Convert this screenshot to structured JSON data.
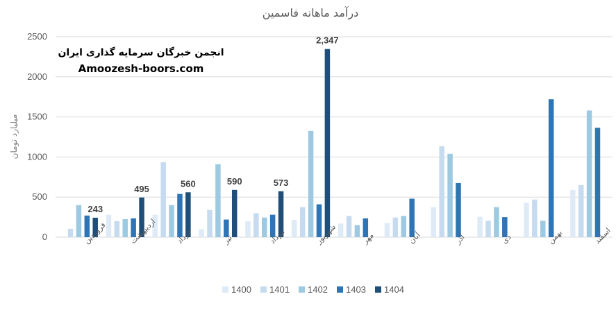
{
  "watermark": {
    "line1": "انجمن خبرگان سرمایه گذاری ایران",
    "line2": "Amoozesh-boors.com"
  },
  "chart_data": {
    "type": "bar",
    "title": "درآمد ماهانه فاسمین",
    "xlabel": "",
    "ylabel": "میلیارد تومان",
    "ylim": [
      0,
      2500
    ],
    "yticks": [
      "0",
      "500",
      "1000",
      "1500",
      "2000",
      "2500"
    ],
    "ytick_values": [
      0,
      500,
      1000,
      1500,
      2000,
      2500
    ],
    "grid": true,
    "legend_position": "bottom",
    "categories": [
      "فروردین",
      "اردیبهشت",
      "خرداد",
      "تیر",
      "مرداد",
      "شهریور",
      "مهر",
      "آبان",
      "آذر",
      "دی",
      "بهمن",
      "اسفند"
    ],
    "series": [
      {
        "name": "1400",
        "color": "#deebf7",
        "values": [
          0,
          280,
          280,
          100,
          200,
          215,
          170,
          175,
          375,
          255,
          430,
          590
        ]
      },
      {
        "name": "1401",
        "color": "#c6dbef",
        "values": [
          105,
          200,
          935,
          340,
          300,
          375,
          265,
          245,
          1135,
          205,
          470,
          650
        ]
      },
      {
        "name": "1402",
        "color": "#9ecae1",
        "values": [
          400,
          225,
          400,
          910,
          245,
          1325,
          150,
          265,
          1040,
          375,
          205,
          1580
        ]
      },
      {
        "name": "1403",
        "color": "#2f75b5",
        "values": [
          270,
          235,
          540,
          220,
          280,
          410,
          235,
          480,
          675,
          250,
          1720,
          1365
        ]
      },
      {
        "name": "1404",
        "color": "#1f4e79",
        "values": [
          243,
          495,
          560,
          590,
          573,
          2347,
          null,
          null,
          null,
          null,
          null,
          null
        ]
      }
    ],
    "data_labels": [
      {
        "series": "1404",
        "category": "فروردین",
        "text": "243"
      },
      {
        "series": "1404",
        "category": "اردیبهشت",
        "text": "495"
      },
      {
        "series": "1404",
        "category": "خرداد",
        "text": "560"
      },
      {
        "series": "1404",
        "category": "تیر",
        "text": "590"
      },
      {
        "series": "1404",
        "category": "مرداد",
        "text": "573"
      },
      {
        "series": "1404",
        "category": "شهریور",
        "text": "2,347"
      }
    ]
  }
}
